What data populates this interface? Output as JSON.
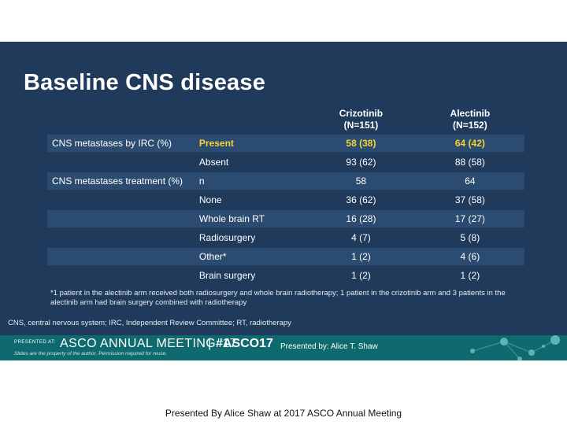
{
  "title": "Baseline CNS disease",
  "table": {
    "col_headers": [
      {
        "name": "Crizotinib",
        "n": "(N=151)"
      },
      {
        "name": "Alectinib",
        "n": "(N=152)"
      }
    ],
    "rows": [
      {
        "category": "CNS metastases by IRC (%)",
        "label": "Present",
        "crizotinib": "58 (38)",
        "alectinib": "64 (42)"
      },
      {
        "category": "",
        "label": "Absent",
        "crizotinib": "93 (62)",
        "alectinib": "88 (58)"
      },
      {
        "category": "CNS metastases treatment (%)",
        "label": "n",
        "crizotinib": "58",
        "alectinib": "64"
      },
      {
        "category": "",
        "label": "None",
        "crizotinib": "36 (62)",
        "alectinib": "37 (58)"
      },
      {
        "category": "",
        "label": "Whole brain RT",
        "crizotinib": "16 (28)",
        "alectinib": "17 (27)"
      },
      {
        "category": "",
        "label": "Radiosurgery",
        "crizotinib": "4 (7)",
        "alectinib": "5 (8)"
      },
      {
        "category": "",
        "label": "Other*",
        "crizotinib": "1 (2)",
        "alectinib": "4 (6)"
      },
      {
        "category": "",
        "label": "Brain surgery",
        "crizotinib": "1 (2)",
        "alectinib": "1 (2)"
      }
    ]
  },
  "footnote": "*1 patient in the alectinib arm received both radiosurgery and whole brain radiotherapy; 1 patient in the crizotinib arm and 3 patients in the alectinib arm had brain surgery combined with radiotherapy",
  "abbreviations": "CNS, central nervous system; IRC, Independent Review Committee; RT, radiotherapy",
  "banner": {
    "presented_at": "PRESENTED AT:",
    "meeting": "ASCO ANNUAL MEETING '17",
    "separator": "|",
    "hashtag": "#ASCO17",
    "presenter": "Presented by: Alice T. Shaw",
    "disclaimer": "Slides are the property of the author. Permission required for reuse.",
    "color": "#0e6a6e"
  },
  "caption": "Presented By Alice Shaw at 2017 ASCO Annual Meeting"
}
